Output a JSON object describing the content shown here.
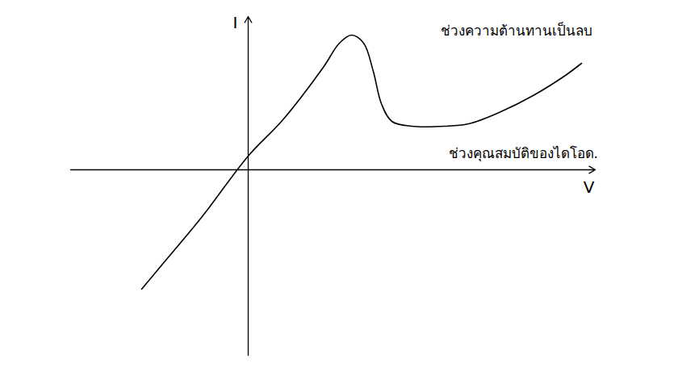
{
  "chart_data": {
    "type": "line",
    "x_label": "V",
    "y_label": "I",
    "xlim": [
      -2.2,
      4.3
    ],
    "ylim": [
      -2.3,
      1.9
    ],
    "tick_labels": false,
    "grid": false,
    "color": "#000000",
    "line_style": "solid",
    "x": [
      -1.32,
      -1.07,
      -0.57,
      0.0,
      0.43,
      0.93,
      1.13,
      1.28,
      1.43,
      1.55,
      1.65,
      1.78,
      2.03,
      2.43,
      2.73,
      3.13,
      3.53,
      3.93,
      4.13
    ],
    "values": [
      -1.48,
      -1.18,
      -0.58,
      0.17,
      0.62,
      1.27,
      1.57,
      1.67,
      1.57,
      1.22,
      0.82,
      0.6,
      0.54,
      0.54,
      0.57,
      0.72,
      0.92,
      1.17,
      1.32
    ],
    "annotations": [
      {
        "text": "ช่วงความต้านทานเป็นลบ",
        "x": 2.38,
        "y": 1.72
      },
      {
        "text": "ช่วงคุณสมบัติของไดโอด.",
        "x": 2.48,
        "y": 0.2
      }
    ]
  }
}
